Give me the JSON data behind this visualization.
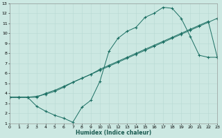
{
  "xlabel": "Humidex (Indice chaleur)",
  "bg_color": "#cce8e2",
  "grid_color": "#b8d8d2",
  "line_color": "#1a6e62",
  "line1_x": [
    0,
    1,
    2,
    3,
    4,
    5,
    6,
    7,
    8,
    9,
    10,
    11,
    12,
    13,
    14,
    15,
    16,
    17,
    18,
    19,
    20,
    21,
    22,
    23
  ],
  "line1_y": [
    3.6,
    3.6,
    3.6,
    3.7,
    3.9,
    4.2,
    4.6,
    5.1,
    5.5,
    5.9,
    6.4,
    6.8,
    7.2,
    7.6,
    8.0,
    8.4,
    8.8,
    9.2,
    9.6,
    10.0,
    10.4,
    10.8,
    11.2,
    7.6
  ],
  "line2_x": [
    0,
    1,
    2,
    3,
    4,
    5,
    6,
    7,
    8,
    9,
    10,
    11,
    12,
    13,
    14,
    15,
    16,
    17,
    18,
    19,
    20,
    21,
    22,
    23
  ],
  "line2_y": [
    3.6,
    3.6,
    3.6,
    2.7,
    2.2,
    1.8,
    1.5,
    1.1,
    2.6,
    3.3,
    5.2,
    8.2,
    9.5,
    10.2,
    10.6,
    11.6,
    12.0,
    12.6,
    12.5,
    11.5,
    9.7,
    7.8,
    7.6,
    7.6
  ],
  "line3_x": [
    0,
    1,
    2,
    3,
    4,
    5,
    6,
    7,
    8,
    9,
    10,
    11,
    12,
    13,
    14,
    15,
    16,
    17,
    18,
    19,
    20,
    21,
    22,
    23
  ],
  "line3_y": [
    3.6,
    3.6,
    3.6,
    3.6,
    4.0,
    4.3,
    4.7,
    5.1,
    5.5,
    5.9,
    6.3,
    6.7,
    7.1,
    7.5,
    7.9,
    8.3,
    8.7,
    9.1,
    9.5,
    9.9,
    10.3,
    10.7,
    11.1,
    11.5
  ],
  "xlim": [
    0,
    23
  ],
  "ylim": [
    1,
    13
  ],
  "xticks": [
    0,
    1,
    2,
    3,
    4,
    5,
    6,
    7,
    8,
    9,
    10,
    11,
    12,
    13,
    14,
    15,
    16,
    17,
    18,
    19,
    20,
    21,
    22,
    23
  ],
  "yticks": [
    1,
    2,
    3,
    4,
    5,
    6,
    7,
    8,
    9,
    10,
    11,
    12,
    13
  ]
}
